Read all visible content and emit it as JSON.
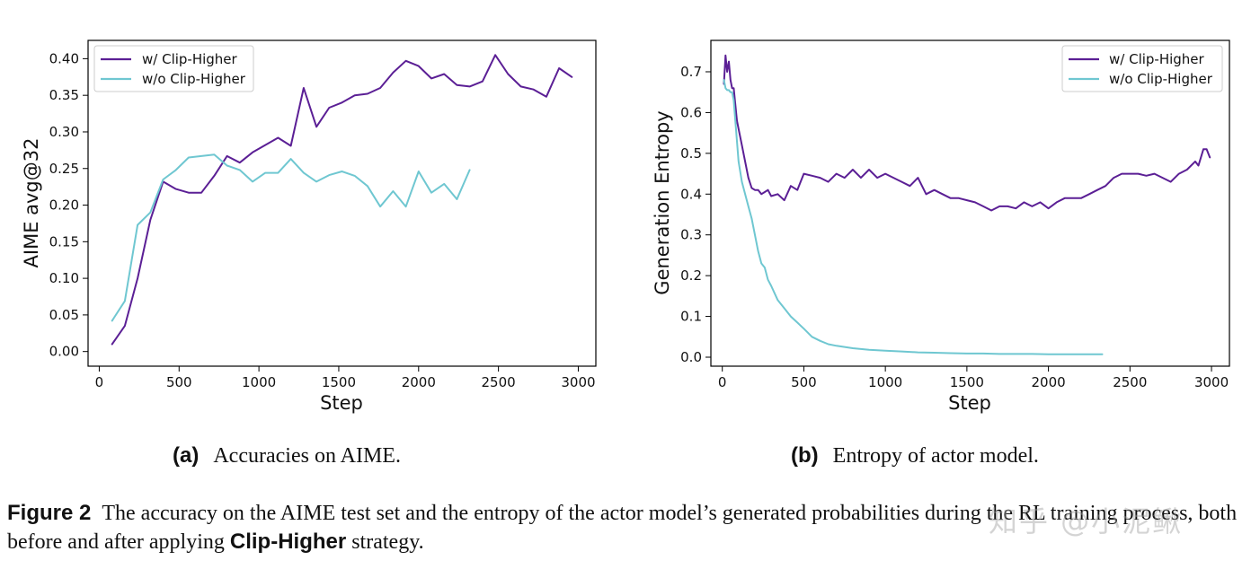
{
  "colors": {
    "with_clip": "#5b1f95",
    "without_clip": "#6fc7d1"
  },
  "chart_data": [
    {
      "type": "line",
      "xlabel": "Step",
      "ylabel": "AIME avg@32",
      "xlim": [
        -70,
        3110
      ],
      "ylim": [
        -0.02,
        0.425
      ],
      "xticks": [
        0,
        500,
        1000,
        1500,
        2000,
        2500,
        3000
      ],
      "xtick_labels": [
        "0",
        "500",
        "1000",
        "1500",
        "2000",
        "2500",
        "3000"
      ],
      "yticks": [
        0.0,
        0.05,
        0.1,
        0.15,
        0.2,
        0.25,
        0.3,
        0.35,
        0.4
      ],
      "ytick_labels": [
        "0.00",
        "0.05",
        "0.10",
        "0.15",
        "0.20",
        "0.25",
        "0.30",
        "0.35",
        "0.40"
      ],
      "legend_position": "top-left",
      "series": [
        {
          "name": "w/ Clip-Higher",
          "color_key": "with_clip",
          "x": [
            80,
            160,
            240,
            320,
            400,
            480,
            560,
            640,
            720,
            800,
            880,
            960,
            1040,
            1120,
            1200,
            1280,
            1360,
            1440,
            1520,
            1600,
            1680,
            1760,
            1840,
            1920,
            2000,
            2080,
            2160,
            2240,
            2320,
            2400,
            2480,
            2560,
            2640,
            2720,
            2800,
            2880,
            2960
          ],
          "y": [
            0.01,
            0.035,
            0.1,
            0.18,
            0.232,
            0.222,
            0.217,
            0.217,
            0.24,
            0.267,
            0.258,
            0.272,
            0.282,
            0.292,
            0.281,
            0.36,
            0.307,
            0.333,
            0.34,
            0.35,
            0.352,
            0.36,
            0.381,
            0.397,
            0.39,
            0.373,
            0.379,
            0.364,
            0.362,
            0.369,
            0.405,
            0.379,
            0.362,
            0.358,
            0.348,
            0.387,
            0.375
          ]
        },
        {
          "name": "w/o Clip-Higher",
          "color_key": "without_clip",
          "x": [
            80,
            160,
            240,
            320,
            400,
            480,
            560,
            640,
            720,
            800,
            880,
            960,
            1040,
            1120,
            1200,
            1280,
            1360,
            1440,
            1520,
            1600,
            1680,
            1760,
            1840,
            1920,
            2000,
            2080,
            2160,
            2240,
            2320
          ],
          "y": [
            0.042,
            0.069,
            0.173,
            0.19,
            0.235,
            0.248,
            0.265,
            0.267,
            0.269,
            0.254,
            0.248,
            0.232,
            0.244,
            0.244,
            0.263,
            0.244,
            0.232,
            0.241,
            0.246,
            0.24,
            0.226,
            0.198,
            0.219,
            0.198,
            0.246,
            0.217,
            0.229,
            0.208,
            0.248
          ]
        }
      ],
      "subcaption_tag": "(a)",
      "subcaption_text": "Accuracies on AIME."
    },
    {
      "type": "line",
      "xlabel": "Step",
      "ylabel": "Generation Entropy",
      "xlim": [
        -70,
        3110
      ],
      "ylim": [
        -0.022,
        0.777
      ],
      "xticks": [
        0,
        500,
        1000,
        1500,
        2000,
        2500,
        3000
      ],
      "xtick_labels": [
        "0",
        "500",
        "1000",
        "1500",
        "2000",
        "2500",
        "3000"
      ],
      "yticks": [
        0.0,
        0.1,
        0.2,
        0.3,
        0.4,
        0.5,
        0.6,
        0.7
      ],
      "ytick_labels": [
        "0.0",
        "0.1",
        "0.2",
        "0.3",
        "0.4",
        "0.5",
        "0.6",
        "0.7"
      ],
      "legend_position": "top-right",
      "series": [
        {
          "name": "w/ Clip-Higher",
          "color_key": "with_clip",
          "x": [
            10,
            20,
            30,
            40,
            50,
            60,
            70,
            80,
            90,
            100,
            120,
            140,
            160,
            180,
            200,
            220,
            240,
            260,
            280,
            300,
            340,
            380,
            420,
            460,
            500,
            550,
            600,
            650,
            700,
            750,
            800,
            850,
            900,
            950,
            1000,
            1050,
            1100,
            1150,
            1200,
            1250,
            1300,
            1350,
            1400,
            1450,
            1500,
            1550,
            1600,
            1650,
            1700,
            1750,
            1800,
            1850,
            1900,
            1950,
            2000,
            2050,
            2100,
            2150,
            2200,
            2250,
            2300,
            2350,
            2400,
            2450,
            2500,
            2550,
            2600,
            2650,
            2700,
            2750,
            2800,
            2850,
            2900,
            2920,
            2950,
            2970,
            2990
          ],
          "y": [
            0.67,
            0.74,
            0.7,
            0.725,
            0.68,
            0.66,
            0.66,
            0.62,
            0.58,
            0.56,
            0.52,
            0.48,
            0.44,
            0.415,
            0.41,
            0.41,
            0.4,
            0.405,
            0.41,
            0.395,
            0.4,
            0.385,
            0.42,
            0.41,
            0.45,
            0.445,
            0.44,
            0.43,
            0.45,
            0.44,
            0.46,
            0.44,
            0.46,
            0.44,
            0.45,
            0.44,
            0.43,
            0.42,
            0.44,
            0.4,
            0.41,
            0.4,
            0.39,
            0.39,
            0.385,
            0.38,
            0.37,
            0.36,
            0.37,
            0.37,
            0.365,
            0.38,
            0.37,
            0.38,
            0.365,
            0.38,
            0.39,
            0.39,
            0.39,
            0.4,
            0.41,
            0.42,
            0.44,
            0.45,
            0.45,
            0.45,
            0.445,
            0.45,
            0.44,
            0.43,
            0.45,
            0.46,
            0.48,
            0.47,
            0.51,
            0.51,
            0.49
          ]
        },
        {
          "name": "w/o Clip-Higher",
          "color_key": "without_clip",
          "x": [
            10,
            20,
            30,
            40,
            50,
            60,
            70,
            80,
            90,
            100,
            120,
            140,
            160,
            180,
            200,
            220,
            240,
            260,
            280,
            300,
            340,
            380,
            420,
            460,
            500,
            550,
            600,
            650,
            700,
            750,
            800,
            900,
            1000,
            1100,
            1200,
            1300,
            1400,
            1500,
            1600,
            1700,
            1800,
            1900,
            2000,
            2100,
            2200,
            2330
          ],
          "y": [
            0.68,
            0.66,
            0.655,
            0.655,
            0.65,
            0.65,
            0.63,
            0.58,
            0.53,
            0.48,
            0.43,
            0.4,
            0.37,
            0.34,
            0.3,
            0.26,
            0.23,
            0.22,
            0.19,
            0.175,
            0.14,
            0.12,
            0.1,
            0.085,
            0.07,
            0.05,
            0.04,
            0.032,
            0.028,
            0.025,
            0.022,
            0.018,
            0.016,
            0.014,
            0.012,
            0.011,
            0.01,
            0.009,
            0.009,
            0.008,
            0.008,
            0.008,
            0.007,
            0.007,
            0.007,
            0.007
          ]
        }
      ],
      "subcaption_tag": "(b)",
      "subcaption_text": "Entropy of actor model."
    }
  ],
  "figure_caption": {
    "tag": "Figure 2",
    "text_1": "The accuracy on the AIME test set and the entropy of the actor model’s generated probabilities during the RL training process, both before and after applying",
    "bold_term": "Clip-Higher",
    "text_2": "strategy."
  },
  "watermark": "知乎 @小泥鳅"
}
